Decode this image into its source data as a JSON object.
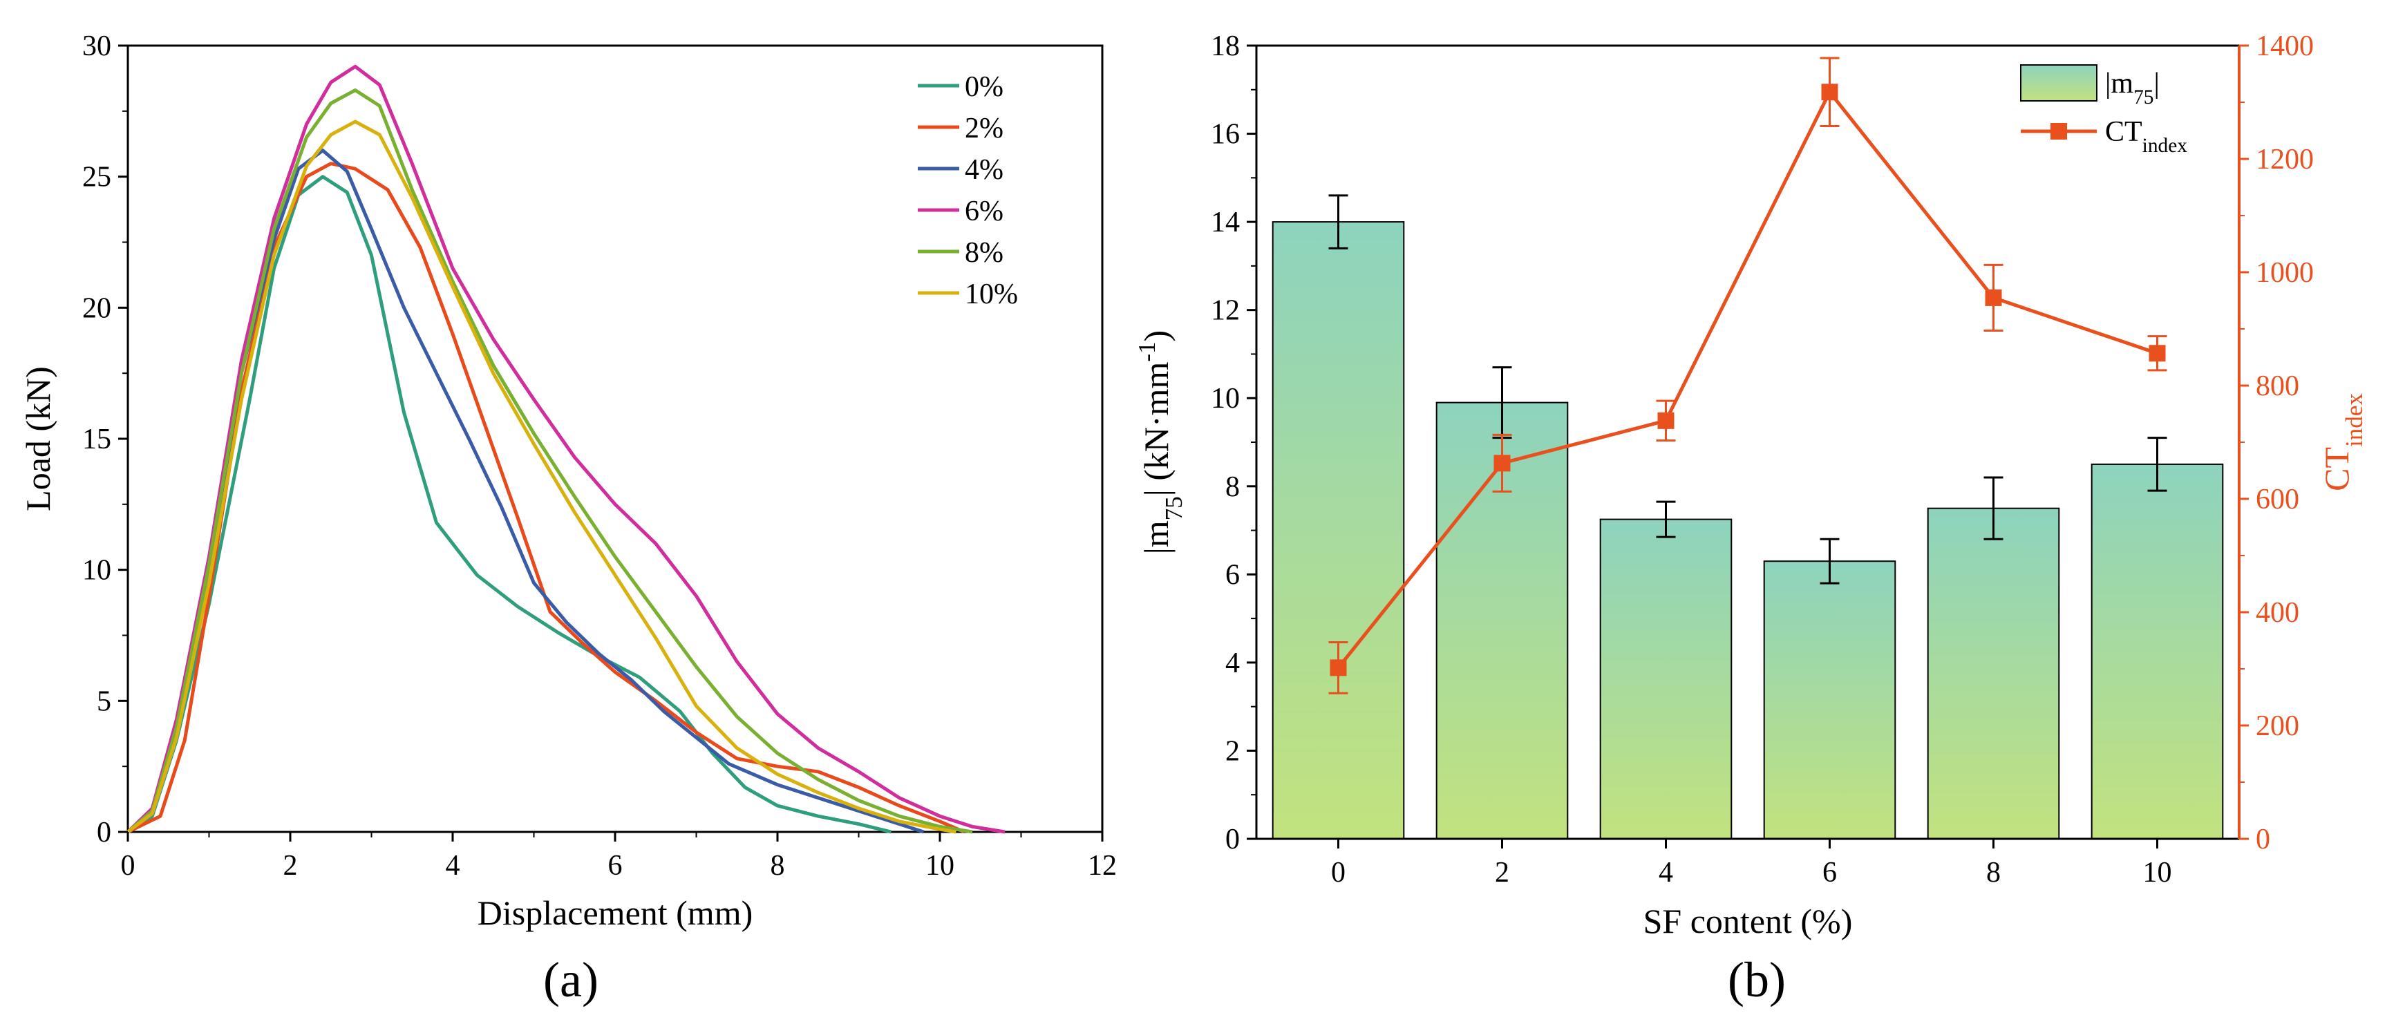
{
  "chart_data": [
    {
      "type": "line",
      "panel_label": "(a)",
      "xlabel": "Displacement (mm)",
      "ylabel": "Load (kN)",
      "xlim": [
        0,
        12
      ],
      "ylim": [
        0,
        30
      ],
      "xticks": [
        "0",
        "2",
        "4",
        "6",
        "8",
        "10",
        "12"
      ],
      "yticks": [
        "0",
        "5",
        "10",
        "15",
        "20",
        "25",
        "30"
      ],
      "legend_position": "top-right",
      "series": [
        {
          "name": "0%",
          "color": "#2e9e7e",
          "points": [
            [
              0,
              0
            ],
            [
              0.3,
              0.6
            ],
            [
              0.6,
              3.5
            ],
            [
              1,
              8.7
            ],
            [
              1.5,
              16.5
            ],
            [
              1.8,
              21.5
            ],
            [
              2.1,
              24.3
            ],
            [
              2.4,
              25
            ],
            [
              2.7,
              24.4
            ],
            [
              3,
              22
            ],
            [
              3.4,
              16
            ],
            [
              3.8,
              11.8
            ],
            [
              4.3,
              9.8
            ],
            [
              4.8,
              8.6
            ],
            [
              5.3,
              7.6
            ],
            [
              5.8,
              6.7
            ],
            [
              6.3,
              5.9
            ],
            [
              6.8,
              4.6
            ],
            [
              7.2,
              3
            ],
            [
              7.6,
              1.7
            ],
            [
              8,
              1
            ],
            [
              8.5,
              0.6
            ],
            [
              9,
              0.3
            ],
            [
              9.4,
              0
            ]
          ]
        },
        {
          "name": "2%",
          "color": "#e84a1c",
          "points": [
            [
              0,
              0
            ],
            [
              0.4,
              0.6
            ],
            [
              0.7,
              3.5
            ],
            [
              1,
              9
            ],
            [
              1.4,
              16.8
            ],
            [
              1.8,
              22.3
            ],
            [
              2.2,
              25
            ],
            [
              2.5,
              25.5
            ],
            [
              2.8,
              25.3
            ],
            [
              3.2,
              24.5
            ],
            [
              3.6,
              22.3
            ],
            [
              4,
              19
            ],
            [
              4.4,
              15.5
            ],
            [
              4.8,
              12
            ],
            [
              5.2,
              8.4
            ],
            [
              5.6,
              7.2
            ],
            [
              6,
              6.1
            ],
            [
              6.5,
              5
            ],
            [
              7,
              3.8
            ],
            [
              7.5,
              2.8
            ],
            [
              8,
              2.5
            ],
            [
              8.5,
              2.3
            ],
            [
              9,
              1.7
            ],
            [
              9.5,
              1
            ],
            [
              10,
              0.4
            ],
            [
              10.3,
              0
            ]
          ]
        },
        {
          "name": "4%",
          "color": "#3a5ca6",
          "points": [
            [
              0,
              0
            ],
            [
              0.3,
              0.8
            ],
            [
              0.6,
              4
            ],
            [
              1,
              10
            ],
            [
              1.4,
              17.5
            ],
            [
              1.8,
              22.6
            ],
            [
              2.1,
              25.3
            ],
            [
              2.4,
              26
            ],
            [
              2.7,
              25.2
            ],
            [
              3,
              23
            ],
            [
              3.4,
              20
            ],
            [
              3.8,
              17.5
            ],
            [
              4.2,
              15
            ],
            [
              4.6,
              12.4
            ],
            [
              5,
              9.5
            ],
            [
              5.4,
              8
            ],
            [
              5.8,
              6.8
            ],
            [
              6.2,
              5.8
            ],
            [
              6.6,
              4.6
            ],
            [
              7,
              3.6
            ],
            [
              7.4,
              2.6
            ],
            [
              8,
              1.8
            ],
            [
              8.6,
              1.2
            ],
            [
              9.2,
              0.6
            ],
            [
              9.8,
              0
            ]
          ]
        },
        {
          "name": "6%",
          "color": "#d12e9d",
          "points": [
            [
              0,
              0
            ],
            [
              0.3,
              0.9
            ],
            [
              0.6,
              4.3
            ],
            [
              1,
              10.5
            ],
            [
              1.4,
              18
            ],
            [
              1.8,
              23.4
            ],
            [
              2.2,
              27
            ],
            [
              2.5,
              28.6
            ],
            [
              2.8,
              29.2
            ],
            [
              3.1,
              28.5
            ],
            [
              3.5,
              25.5
            ],
            [
              4,
              21.5
            ],
            [
              4.5,
              18.8
            ],
            [
              5,
              16.5
            ],
            [
              5.5,
              14.3
            ],
            [
              6,
              12.5
            ],
            [
              6.5,
              11
            ],
            [
              7,
              9
            ],
            [
              7.5,
              6.5
            ],
            [
              8,
              4.5
            ],
            [
              8.5,
              3.2
            ],
            [
              9,
              2.3
            ],
            [
              9.5,
              1.3
            ],
            [
              10,
              0.6
            ],
            [
              10.4,
              0.2
            ],
            [
              10.8,
              0
            ]
          ]
        },
        {
          "name": "8%",
          "color": "#7ab032",
          "points": [
            [
              0,
              0
            ],
            [
              0.3,
              0.8
            ],
            [
              0.6,
              4
            ],
            [
              1,
              10.2
            ],
            [
              1.4,
              17.5
            ],
            [
              1.8,
              23
            ],
            [
              2.2,
              26.5
            ],
            [
              2.5,
              27.8
            ],
            [
              2.8,
              28.3
            ],
            [
              3.1,
              27.7
            ],
            [
              3.5,
              24.5
            ],
            [
              4,
              21
            ],
            [
              4.5,
              17.8
            ],
            [
              5,
              15.2
            ],
            [
              5.5,
              12.8
            ],
            [
              6,
              10.5
            ],
            [
              6.5,
              8.4
            ],
            [
              7,
              6.3
            ],
            [
              7.5,
              4.4
            ],
            [
              8,
              3
            ],
            [
              8.5,
              2
            ],
            [
              9,
              1.2
            ],
            [
              9.5,
              0.6
            ],
            [
              10,
              0.2
            ],
            [
              10.4,
              0
            ]
          ]
        },
        {
          "name": "10%",
          "color": "#d9b10f",
          "points": [
            [
              0,
              0
            ],
            [
              0.3,
              0.7
            ],
            [
              0.6,
              3.6
            ],
            [
              1,
              9.5
            ],
            [
              1.4,
              16.5
            ],
            [
              1.8,
              22
            ],
            [
              2.2,
              25.4
            ],
            [
              2.5,
              26.6
            ],
            [
              2.8,
              27.1
            ],
            [
              3.1,
              26.6
            ],
            [
              3.5,
              24.2
            ],
            [
              4,
              20.8
            ],
            [
              4.5,
              17.5
            ],
            [
              5,
              14.8
            ],
            [
              5.5,
              12.2
            ],
            [
              6,
              9.8
            ],
            [
              6.5,
              7.4
            ],
            [
              7,
              4.8
            ],
            [
              7.5,
              3.2
            ],
            [
              8,
              2.2
            ],
            [
              8.5,
              1.5
            ],
            [
              9,
              0.9
            ],
            [
              9.5,
              0.4
            ],
            [
              10,
              0.1
            ],
            [
              10.2,
              0
            ]
          ]
        }
      ]
    },
    {
      "type": "bar",
      "panel_label": "(b)",
      "xlabel": "SF content (%)",
      "categories": [
        "0",
        "2",
        "4",
        "6",
        "8",
        "10"
      ],
      "ylabel_left_parts": [
        "|m",
        "75",
        "| (kN·mm",
        "-1",
        ")"
      ],
      "ylabel_right_parts": [
        "CT",
        "index"
      ],
      "ylim_left": [
        0,
        18
      ],
      "ylim_right": [
        0,
        1400
      ],
      "yticks_left": [
        "0",
        "2",
        "4",
        "6",
        "8",
        "10",
        "12",
        "14",
        "16",
        "18"
      ],
      "yticks_right": [
        "0",
        "200",
        "400",
        "600",
        "800",
        "1000",
        "1200",
        "1400"
      ],
      "right_axis_color": "#e8501e",
      "legend_position": "top-right",
      "series": [
        {
          "name_parts": [
            "|m",
            "75",
            "|"
          ],
          "type": "bar",
          "axis": "left",
          "values": [
            14.0,
            9.9,
            7.25,
            6.3,
            7.5,
            8.5
          ],
          "errors": [
            0.6,
            0.8,
            0.4,
            0.5,
            0.7,
            0.6
          ]
        },
        {
          "name_parts": [
            "CT",
            "index"
          ],
          "type": "line",
          "axis": "right",
          "color": "#e8501e",
          "values": [
            302,
            663,
            738,
            1318,
            955,
            857
          ],
          "errors": [
            45,
            50,
            35,
            60,
            58,
            30
          ]
        }
      ]
    }
  ]
}
